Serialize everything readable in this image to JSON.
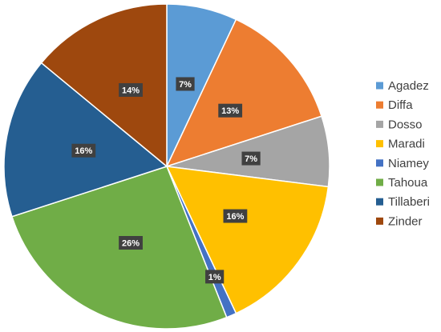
{
  "chart_data": {
    "type": "pie",
    "title": "",
    "categories": [
      "Agadez",
      "Diffa",
      "Dosso",
      "Maradi",
      "Niamey",
      "Tahoua",
      "Tillaberi",
      "Zinder"
    ],
    "values": [
      7,
      13,
      7,
      16,
      1,
      26,
      16,
      14
    ],
    "labels": [
      "7%",
      "13%",
      "7%",
      "16%",
      "1%",
      "26%",
      "16%",
      "14%"
    ],
    "colors": [
      "#5B9BD5",
      "#ED7D31",
      "#A5A5A5",
      "#FFC000",
      "#4472C4",
      "#70AD47",
      "#255E91",
      "#9E480E"
    ],
    "legend_position": "right",
    "start_angle": "top, clockwise",
    "data_label_style": "white bold text on dark gray box"
  }
}
